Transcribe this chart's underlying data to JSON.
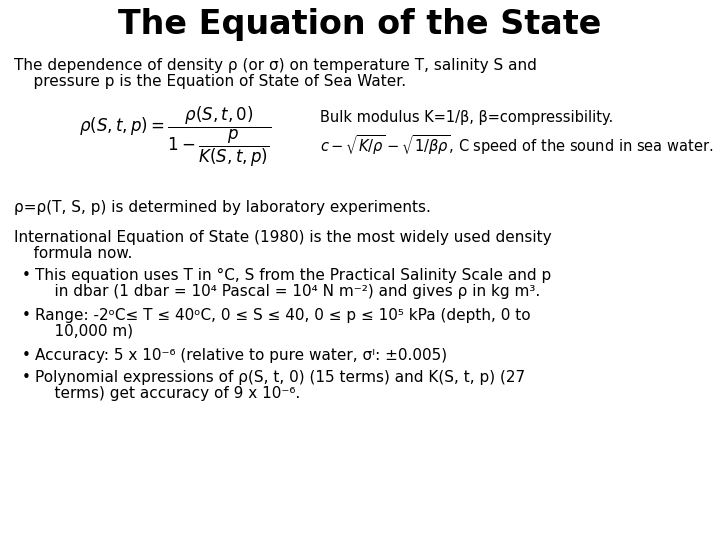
{
  "title": "The Equation of the State",
  "title_fontsize": 24,
  "title_fontweight": "bold",
  "background_color": "#ffffff",
  "text_color": "#000000",
  "body_fontsize": 11,
  "intro_line1": "The dependence of density ρ (or σ) on temperature T, salinity S and",
  "intro_line2": "    pressure p is the Equation of State of Sea Water.",
  "formula_bulk": "Bulk modulus K=1/β, β=compressibility.",
  "formula_speed": "c – √K/ρ – √1/βρ , C speed of the sound in sea water.",
  "rho_determined": "ρ=ρ(T, S, p) is determined by laboratory experiments.",
  "ies_line1": "International Equation of State (1980) is the most widely used density",
  "ies_line2": "    formula now.",
  "bullet1_line1": "This equation uses T in °C, S from the Practical Salinity Scale and p",
  "bullet1_line2": "    in dbar (1 dbar = 10⁴ Pascal = 10⁴ N m⁻²) and gives ρ in kg m³.",
  "bullet2_line1": "Range: -2ᵒC≤ T ≤ 40ᵒC, 0 ≤ S ≤ 40, 0 ≤ p ≤ 10⁵ kPa (depth, 0 to",
  "bullet2_line2": "    10,000 m)",
  "bullet3": "Accuracy: 5 x 10⁻⁶ (relative to pure water, σᴵ: ±0.005)",
  "bullet4_line1": "Polynomial expressions of ρ(S, t, 0) (15 terms) and K(S, t, p) (27",
  "bullet4_line2": "    terms) get accuracy of 9 x 10⁻⁶."
}
